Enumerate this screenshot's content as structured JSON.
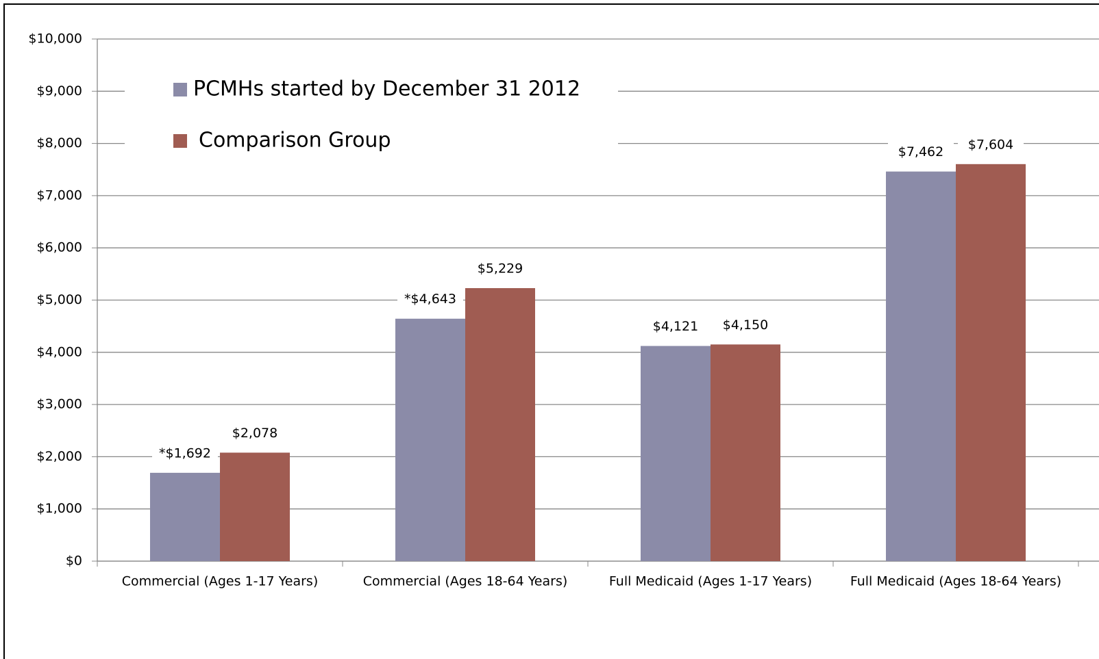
{
  "chart_data": {
    "type": "bar",
    "categories": [
      "Commercial (Ages 1-17 Years)",
      "Commercial (Ages 18-64 Years)",
      "Full Medicaid (Ages 1-17 Years)",
      "Full Medicaid (Ages 18-64 Years)"
    ],
    "series": [
      {
        "name": "PCMHs started by December 31 2012",
        "color": "#8b8ba8",
        "values": [
          1692,
          4643,
          4121,
          7462
        ],
        "value_labels": [
          "*$1,692",
          "*$4,643",
          "$4,121",
          "$7,462"
        ]
      },
      {
        "name": "Comparison Group",
        "color": "#a05c52",
        "values": [
          2078,
          5229,
          4150,
          7604
        ],
        "value_labels": [
          "$2,078",
          "$5,229",
          "$4,150",
          "$7,604"
        ]
      }
    ],
    "ylim": [
      0,
      10000
    ],
    "yticks": [
      {
        "value": 0,
        "label": "$0"
      },
      {
        "value": 1000,
        "label": "$1,000"
      },
      {
        "value": 2000,
        "label": "$2,000"
      },
      {
        "value": 3000,
        "label": "$3,000"
      },
      {
        "value": 4000,
        "label": "$4,000"
      },
      {
        "value": 5000,
        "label": "$5,000"
      },
      {
        "value": 6000,
        "label": "$6,000"
      },
      {
        "value": 7000,
        "label": "$7,000"
      },
      {
        "value": 8000,
        "label": "$8,000"
      },
      {
        "value": 9000,
        "label": "$9,000"
      },
      {
        "value": 10000,
        "label": "$10,000"
      }
    ],
    "grid": true
  }
}
